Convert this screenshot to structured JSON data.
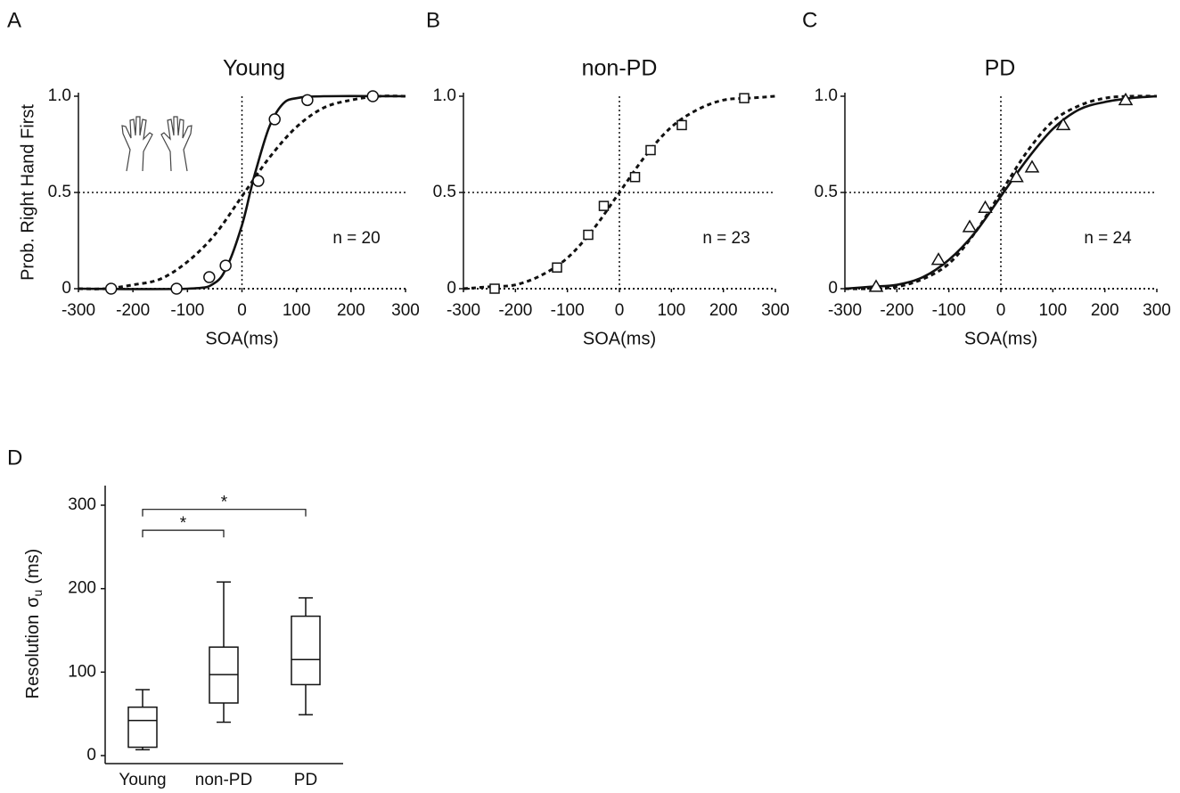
{
  "chart_data": [
    {
      "type": "line",
      "panel": "A",
      "title": "Young",
      "ylabel": "Prob. Right Hand First",
      "xlabel": "SOA(ms)",
      "annotation": "n = 20",
      "xlim": [
        -300,
        300
      ],
      "xticks": [
        -300,
        -200,
        -100,
        0,
        100,
        200,
        300
      ],
      "ylim": [
        0,
        1
      ],
      "yticks": [
        0,
        0.5,
        {
          "value": 1,
          "label": "1.0"
        }
      ],
      "hline": 0.5,
      "vline": 0,
      "series": [
        {
          "style": "markers",
          "marker": "circle",
          "x": [
            -240,
            -120,
            -60,
            -30,
            30,
            60,
            120,
            240
          ],
          "values": [
            0,
            0,
            0.06,
            0.12,
            0.56,
            0.88,
            0.98,
            1.0
          ]
        },
        {
          "style": "solid",
          "x": [
            -300,
            -100,
            -50,
            -25,
            0,
            15,
            25,
            50,
            75,
            100,
            150,
            300
          ],
          "values": [
            0,
            0,
            0.03,
            0.13,
            0.33,
            0.5,
            0.61,
            0.84,
            0.96,
            0.99,
            1,
            1
          ]
        },
        {
          "style": "dashed",
          "x": [
            -300,
            -250,
            -200,
            -150,
            -100,
            -50,
            0,
            50,
            100,
            150,
            200,
            250,
            300
          ],
          "values": [
            0,
            0,
            0.02,
            0.05,
            0.14,
            0.28,
            0.48,
            0.68,
            0.84,
            0.94,
            0.98,
            1.0,
            1.0
          ]
        }
      ]
    },
    {
      "type": "line",
      "panel": "B",
      "title": "non-PD",
      "xlabel": "SOA(ms)",
      "annotation": "n = 23",
      "xlim": [
        -300,
        300
      ],
      "xticks": [
        -300,
        -200,
        -100,
        0,
        100,
        200,
        300
      ],
      "ylim": [
        0,
        1
      ],
      "yticks": [
        0,
        0.5,
        {
          "value": 1,
          "label": "1.0"
        }
      ],
      "hline": 0.5,
      "vline": 0,
      "series": [
        {
          "style": "markers",
          "marker": "square",
          "x": [
            -240,
            -120,
            -60,
            -30,
            30,
            60,
            120,
            240
          ],
          "values": [
            0,
            0.11,
            0.28,
            0.43,
            0.58,
            0.72,
            0.85,
            0.99
          ]
        },
        {
          "style": "dashed",
          "x": [
            -300,
            -250,
            -200,
            -150,
            -100,
            -50,
            0,
            50,
            100,
            150,
            200,
            250,
            300
          ],
          "values": [
            0,
            0.01,
            0.02,
            0.07,
            0.16,
            0.31,
            0.5,
            0.69,
            0.84,
            0.93,
            0.98,
            0.99,
            1
          ]
        }
      ]
    },
    {
      "type": "line",
      "panel": "C",
      "title": "PD",
      "xlabel": "SOA(ms)",
      "annotation": "n = 24",
      "xlim": [
        -300,
        300
      ],
      "xticks": [
        -300,
        -200,
        -100,
        0,
        100,
        200,
        300
      ],
      "ylim": [
        0,
        1
      ],
      "yticks": [
        0,
        0.5,
        {
          "value": 1,
          "label": "1.0"
        }
      ],
      "hline": 0.5,
      "vline": 0,
      "series": [
        {
          "style": "markers",
          "marker": "triangle",
          "x": [
            -240,
            -120,
            -60,
            -30,
            30,
            60,
            120,
            240
          ],
          "values": [
            0.01,
            0.15,
            0.32,
            0.42,
            0.58,
            0.63,
            0.85,
            0.98
          ]
        },
        {
          "style": "solid",
          "x": [
            -300,
            -250,
            -200,
            -150,
            -100,
            -50,
            0,
            50,
            100,
            150,
            200,
            250,
            300
          ],
          "values": [
            0,
            0.01,
            0.02,
            0.06,
            0.15,
            0.29,
            0.48,
            0.67,
            0.83,
            0.93,
            0.97,
            0.99,
            1
          ]
        },
        {
          "style": "dashed",
          "x": [
            -300,
            -250,
            -200,
            -150,
            -100,
            -50,
            0,
            50,
            100,
            150,
            200,
            250,
            300
          ],
          "values": [
            0,
            0,
            0.01,
            0.05,
            0.13,
            0.29,
            0.5,
            0.71,
            0.87,
            0.95,
            0.99,
            1,
            1
          ]
        }
      ]
    },
    {
      "type": "box",
      "panel": "D",
      "ylabel": "Resolution",
      "ylabel_symbol": "σ",
      "ylabel_subscript": "u",
      "ylabel_unit": "(ms)",
      "categories": [
        "Young",
        "non-PD",
        "PD"
      ],
      "values": [
        {
          "min": 7,
          "q1": 10,
          "median": 42,
          "q3": 58,
          "max": 79
        },
        {
          "min": 40,
          "q1": 63,
          "median": 97,
          "q3": 130,
          "max": 208
        },
        {
          "min": 49,
          "q1": 85,
          "median": 115,
          "q3": 167,
          "max": 189
        }
      ],
      "ylim": [
        0,
        330
      ],
      "yticks": [
        0,
        100,
        200,
        300
      ],
      "significance": [
        {
          "from": 0,
          "to": 1,
          "label": "*",
          "y": 270
        },
        {
          "from": 0,
          "to": 2,
          "label": "*",
          "y": 295
        }
      ]
    }
  ]
}
